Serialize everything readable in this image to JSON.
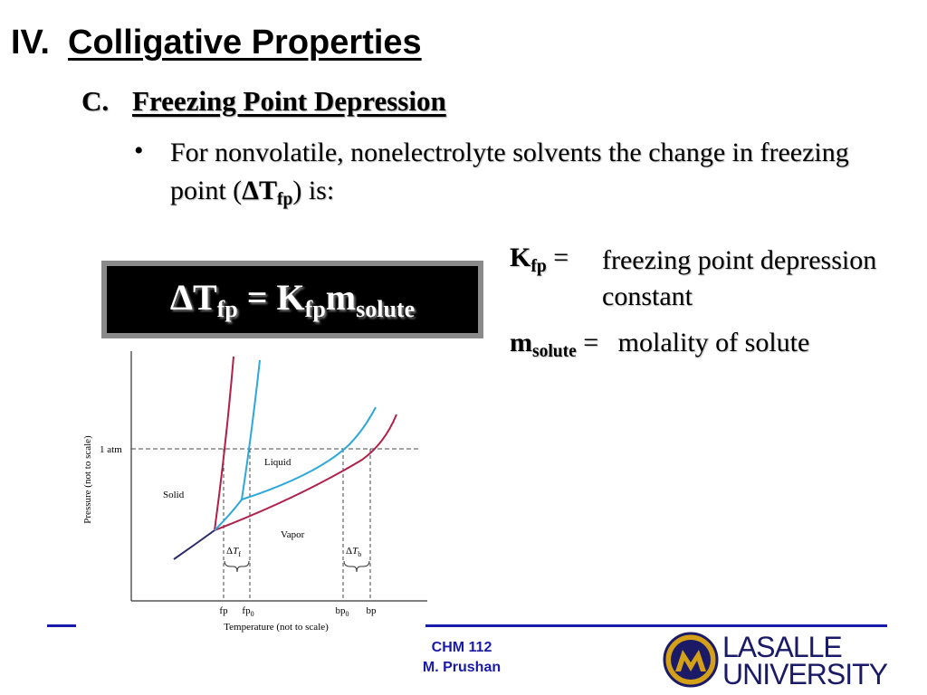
{
  "heading": {
    "number": "IV.",
    "title": "Colligative Properties"
  },
  "subheading": {
    "letter": "C.",
    "title": "Freezing Point Depression"
  },
  "bullet": {
    "symbol": "•",
    "text_before": "For nonvolatile, nonelectrolyte solvents the change in freezing point (",
    "delta_T": "ΔT",
    "fp_sub": "fp",
    "text_after": ") is:"
  },
  "equation": {
    "delta_T": "ΔT",
    "fp_sub": "fp",
    "equals": " = ",
    "K": "K",
    "K_sub": "fp",
    "m": "m",
    "m_sub": "solute"
  },
  "definitions": [
    {
      "symbol": "K",
      "sub": "fp",
      "equals": " =",
      "meaning_line1": "freezing point depression",
      "meaning_line2": "constant"
    },
    {
      "symbol": "m",
      "sub": "solute",
      "equals": " =",
      "meaning_line1": "molality of solute"
    }
  ],
  "diagram": {
    "y_axis_label": "Pressure (not to scale)",
    "x_axis_label": "Temperature (not to scale)",
    "atm_label": "1 atm",
    "region_solid": "Solid",
    "region_liquid": "Liquid",
    "region_vapor": "Vapor",
    "delta": "Δ",
    "T": "T",
    "tf_sub": "f",
    "tb_sub": "b",
    "tick_fp": "fp",
    "tick_fp0_main": "fp",
    "tick_fp0_sub": "0",
    "tick_bp0_main": "bp",
    "tick_bp0_sub": "0",
    "tick_bp": "bp",
    "solution_color": "#b0204a",
    "solvent_color": "#2ea8d8"
  },
  "footer": {
    "course": "CHM 112",
    "author": "M. Prushan"
  },
  "logo": {
    "line1": "LASALLE",
    "line2": "UNIVERSITY"
  },
  "colors": {
    "accent_bar": "#1a1aa8",
    "footer_text": "#1a1aa8",
    "logo_gold": "#d4a017",
    "logo_navy": "#1a1a66"
  }
}
